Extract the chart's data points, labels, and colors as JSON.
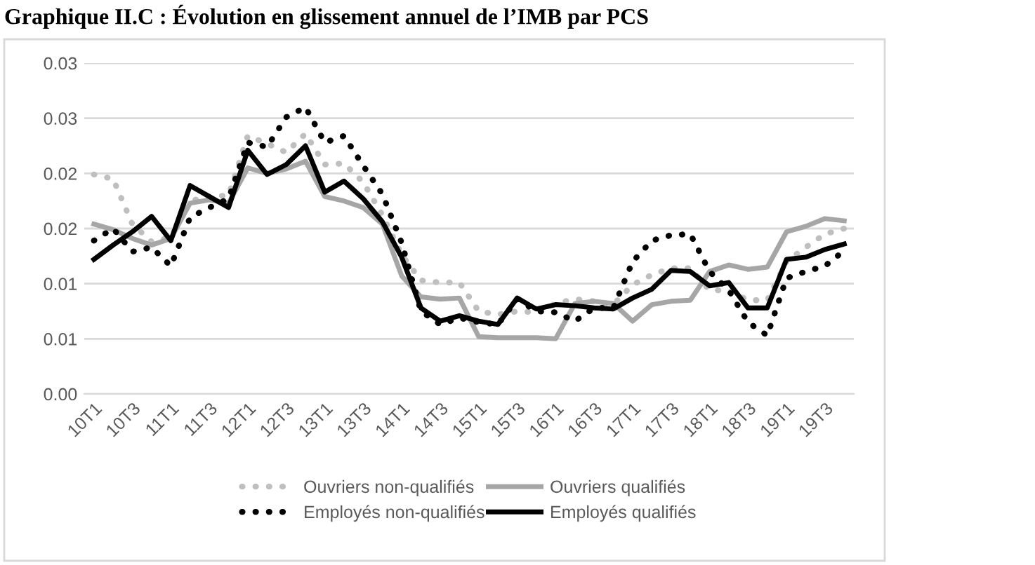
{
  "chart_data": {
    "type": "line",
    "title": "Graphique II.C : Évolution en glissement annuel de l’IMB par PCS",
    "categories": [
      "10T1",
      null,
      "10T3",
      null,
      "11T1",
      null,
      "11T3",
      null,
      "12T1",
      null,
      "12T3",
      null,
      "13T1",
      null,
      "13T3",
      null,
      "14T1",
      null,
      "14T3",
      null,
      "15T1",
      null,
      "15T3",
      null,
      "16T1",
      null,
      "16T3",
      null,
      "17T1",
      null,
      "17T3",
      null,
      "18T1",
      null,
      "18T3",
      null,
      "19T1",
      null,
      "19T3",
      null
    ],
    "series": [
      {
        "name": "Ouvriers non-qualifiés",
        "color": "#bfbfbf",
        "line_style": "dotted",
        "values": [
          0.0199,
          0.0195,
          0.0154,
          0.0138,
          0.0142,
          0.0175,
          0.0179,
          0.018,
          0.0234,
          0.0227,
          0.0219,
          0.0236,
          0.0208,
          0.0209,
          0.0192,
          0.0162,
          0.0126,
          0.0103,
          0.0101,
          0.0101,
          0.0075,
          0.0072,
          0.0075,
          0.0074,
          0.0082,
          0.0086,
          0.0084,
          0.0081,
          0.0099,
          0.0108,
          0.0114,
          0.0114,
          0.0094,
          0.0094,
          0.0085,
          0.0085,
          0.012,
          0.0133,
          0.0145,
          0.015
        ]
      },
      {
        "name": "Ouvriers qualifiés",
        "color": "#a6a6a6",
        "line_style": "solid",
        "values": [
          0.0154,
          0.0149,
          0.0141,
          0.0135,
          0.0141,
          0.0173,
          0.0176,
          0.0173,
          0.0205,
          0.02,
          0.0204,
          0.0211,
          0.0179,
          0.0175,
          0.0169,
          0.0154,
          0.0107,
          0.0088,
          0.0086,
          0.0087,
          0.0052,
          0.0051,
          0.0051,
          0.0051,
          0.005,
          0.0082,
          0.0084,
          0.0082,
          0.0066,
          0.0081,
          0.0084,
          0.0085,
          0.0111,
          0.0117,
          0.0113,
          0.0115,
          0.0147,
          0.0152,
          0.0159,
          0.0157
        ]
      },
      {
        "name": "Employés non-qualifiés",
        "color": "#000000",
        "line_style": "dotted",
        "values": [
          0.0139,
          0.015,
          0.0129,
          0.0133,
          0.0116,
          0.016,
          0.0169,
          0.0177,
          0.0228,
          0.0224,
          0.0251,
          0.026,
          0.0228,
          0.0234,
          0.0207,
          0.0181,
          0.0137,
          0.0075,
          0.0063,
          0.0069,
          0.0065,
          0.0063,
          0.0086,
          0.0075,
          0.0074,
          0.0066,
          0.0078,
          0.0078,
          0.012,
          0.0139,
          0.0144,
          0.0145,
          0.0111,
          0.0094,
          0.0065,
          0.0053,
          0.0105,
          0.0111,
          0.0116,
          0.013
        ]
      },
      {
        "name": "Employés qualifiés",
        "color": "#000000",
        "line_style": "solid",
        "values": [
          0.0122,
          0.0135,
          0.0147,
          0.0161,
          0.0139,
          0.0189,
          0.0179,
          0.0169,
          0.0221,
          0.0199,
          0.0208,
          0.0225,
          0.0183,
          0.0193,
          0.0177,
          0.0156,
          0.0124,
          0.0078,
          0.0066,
          0.0071,
          0.0066,
          0.0063,
          0.0087,
          0.0077,
          0.0081,
          0.008,
          0.0078,
          0.0077,
          0.0087,
          0.0095,
          0.0112,
          0.0111,
          0.0098,
          0.0101,
          0.0078,
          0.0078,
          0.0122,
          0.0124,
          0.0131,
          0.0136
        ]
      }
    ],
    "ylim": [
      0,
      0.03
    ],
    "yticks": [
      {
        "value": 0,
        "label": "0.00"
      },
      {
        "value": 0.005,
        "label": "0.01"
      },
      {
        "value": 0.01,
        "label": "0.01"
      },
      {
        "value": 0.015,
        "label": "0.02"
      },
      {
        "value": 0.02,
        "label": "0.02"
      },
      {
        "value": 0.025,
        "label": "0.03"
      },
      {
        "value": 0.03,
        "label": "0.03"
      }
    ],
    "grid": "y",
    "legend": "bottom",
    "marker": "none"
  }
}
